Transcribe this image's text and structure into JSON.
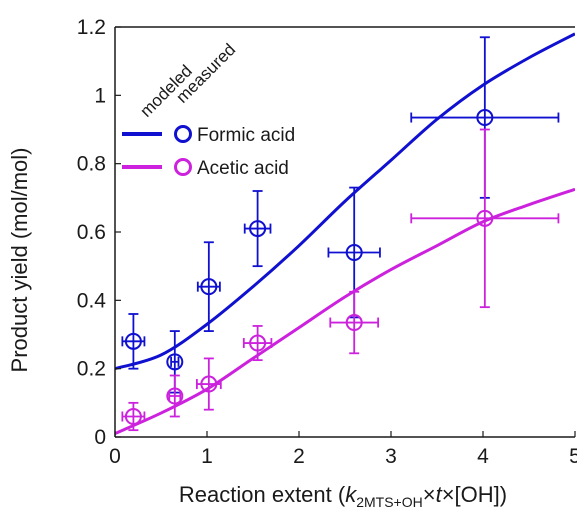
{
  "chart_data": {
    "type": "scatter",
    "xlim": [
      0,
      5
    ],
    "ylim": [
      0,
      1.2
    ],
    "xticks": [
      0,
      1,
      2,
      3,
      4,
      5
    ],
    "yticks": [
      0,
      0.2,
      0.4,
      0.6,
      0.8,
      1,
      1.2
    ],
    "ylabel": "Product yield (mol/mol)",
    "xlabel": {
      "prefix": "Reaction extent (",
      "k": "k",
      "k_sub": "2MTS+OH",
      "times1": "×",
      "t": "t",
      "suffix": "×[OH])"
    },
    "grid": false,
    "legend": {
      "placement": "top-left",
      "header_modeled": "modeled",
      "header_measured": "measured"
    },
    "series": [
      {
        "name": "Formic acid",
        "color": "#1010d0",
        "measured": [
          {
            "x": 0.2,
            "y": 0.28,
            "xerr": 0.12,
            "yerr": 0.08
          },
          {
            "x": 0.65,
            "y": 0.22,
            "xerr": 0.04,
            "yerr": 0.09
          },
          {
            "x": 1.02,
            "y": 0.44,
            "xerr": 0.12,
            "yerr": 0.13
          },
          {
            "x": 1.55,
            "y": 0.61,
            "xerr": 0.14,
            "yerr": 0.11
          },
          {
            "x": 2.6,
            "y": 0.54,
            "xerr": 0.28,
            "yerr": 0.19
          },
          {
            "x": 4.02,
            "y": 0.935,
            "xerr": 0.8,
            "yerr": 0.235
          }
        ],
        "modeled": [
          {
            "x": 0,
            "y": 0.2
          },
          {
            "x": 0.5,
            "y": 0.24
          },
          {
            "x": 1,
            "y": 0.33
          },
          {
            "x": 1.5,
            "y": 0.44
          },
          {
            "x": 2,
            "y": 0.56
          },
          {
            "x": 2.5,
            "y": 0.69
          },
          {
            "x": 3,
            "y": 0.81
          },
          {
            "x": 3.5,
            "y": 0.93
          },
          {
            "x": 4,
            "y": 1.03
          },
          {
            "x": 4.5,
            "y": 1.11
          },
          {
            "x": 5,
            "y": 1.18
          }
        ]
      },
      {
        "name": "Acetic acid",
        "color": "#cc22dd",
        "measured": [
          {
            "x": 0.2,
            "y": 0.06,
            "xerr": 0.12,
            "yerr": 0.04
          },
          {
            "x": 0.65,
            "y": 0.12,
            "xerr": 0.06,
            "yerr": 0.06
          },
          {
            "x": 1.02,
            "y": 0.155,
            "xerr": 0.13,
            "yerr": 0.075
          },
          {
            "x": 1.55,
            "y": 0.275,
            "xerr": 0.15,
            "yerr": 0.05
          },
          {
            "x": 2.6,
            "y": 0.335,
            "xerr": 0.26,
            "yerr": 0.09
          },
          {
            "x": 4.02,
            "y": 0.64,
            "xerr": 0.8,
            "yerr": 0.26
          }
        ],
        "modeled": [
          {
            "x": 0,
            "y": 0.01
          },
          {
            "x": 0.5,
            "y": 0.07
          },
          {
            "x": 1,
            "y": 0.14
          },
          {
            "x": 1.5,
            "y": 0.23
          },
          {
            "x": 2,
            "y": 0.32
          },
          {
            "x": 2.5,
            "y": 0.41
          },
          {
            "x": 3,
            "y": 0.49
          },
          {
            "x": 3.5,
            "y": 0.56
          },
          {
            "x": 4,
            "y": 0.63
          },
          {
            "x": 4.5,
            "y": 0.68
          },
          {
            "x": 5,
            "y": 0.725
          }
        ]
      }
    ]
  }
}
